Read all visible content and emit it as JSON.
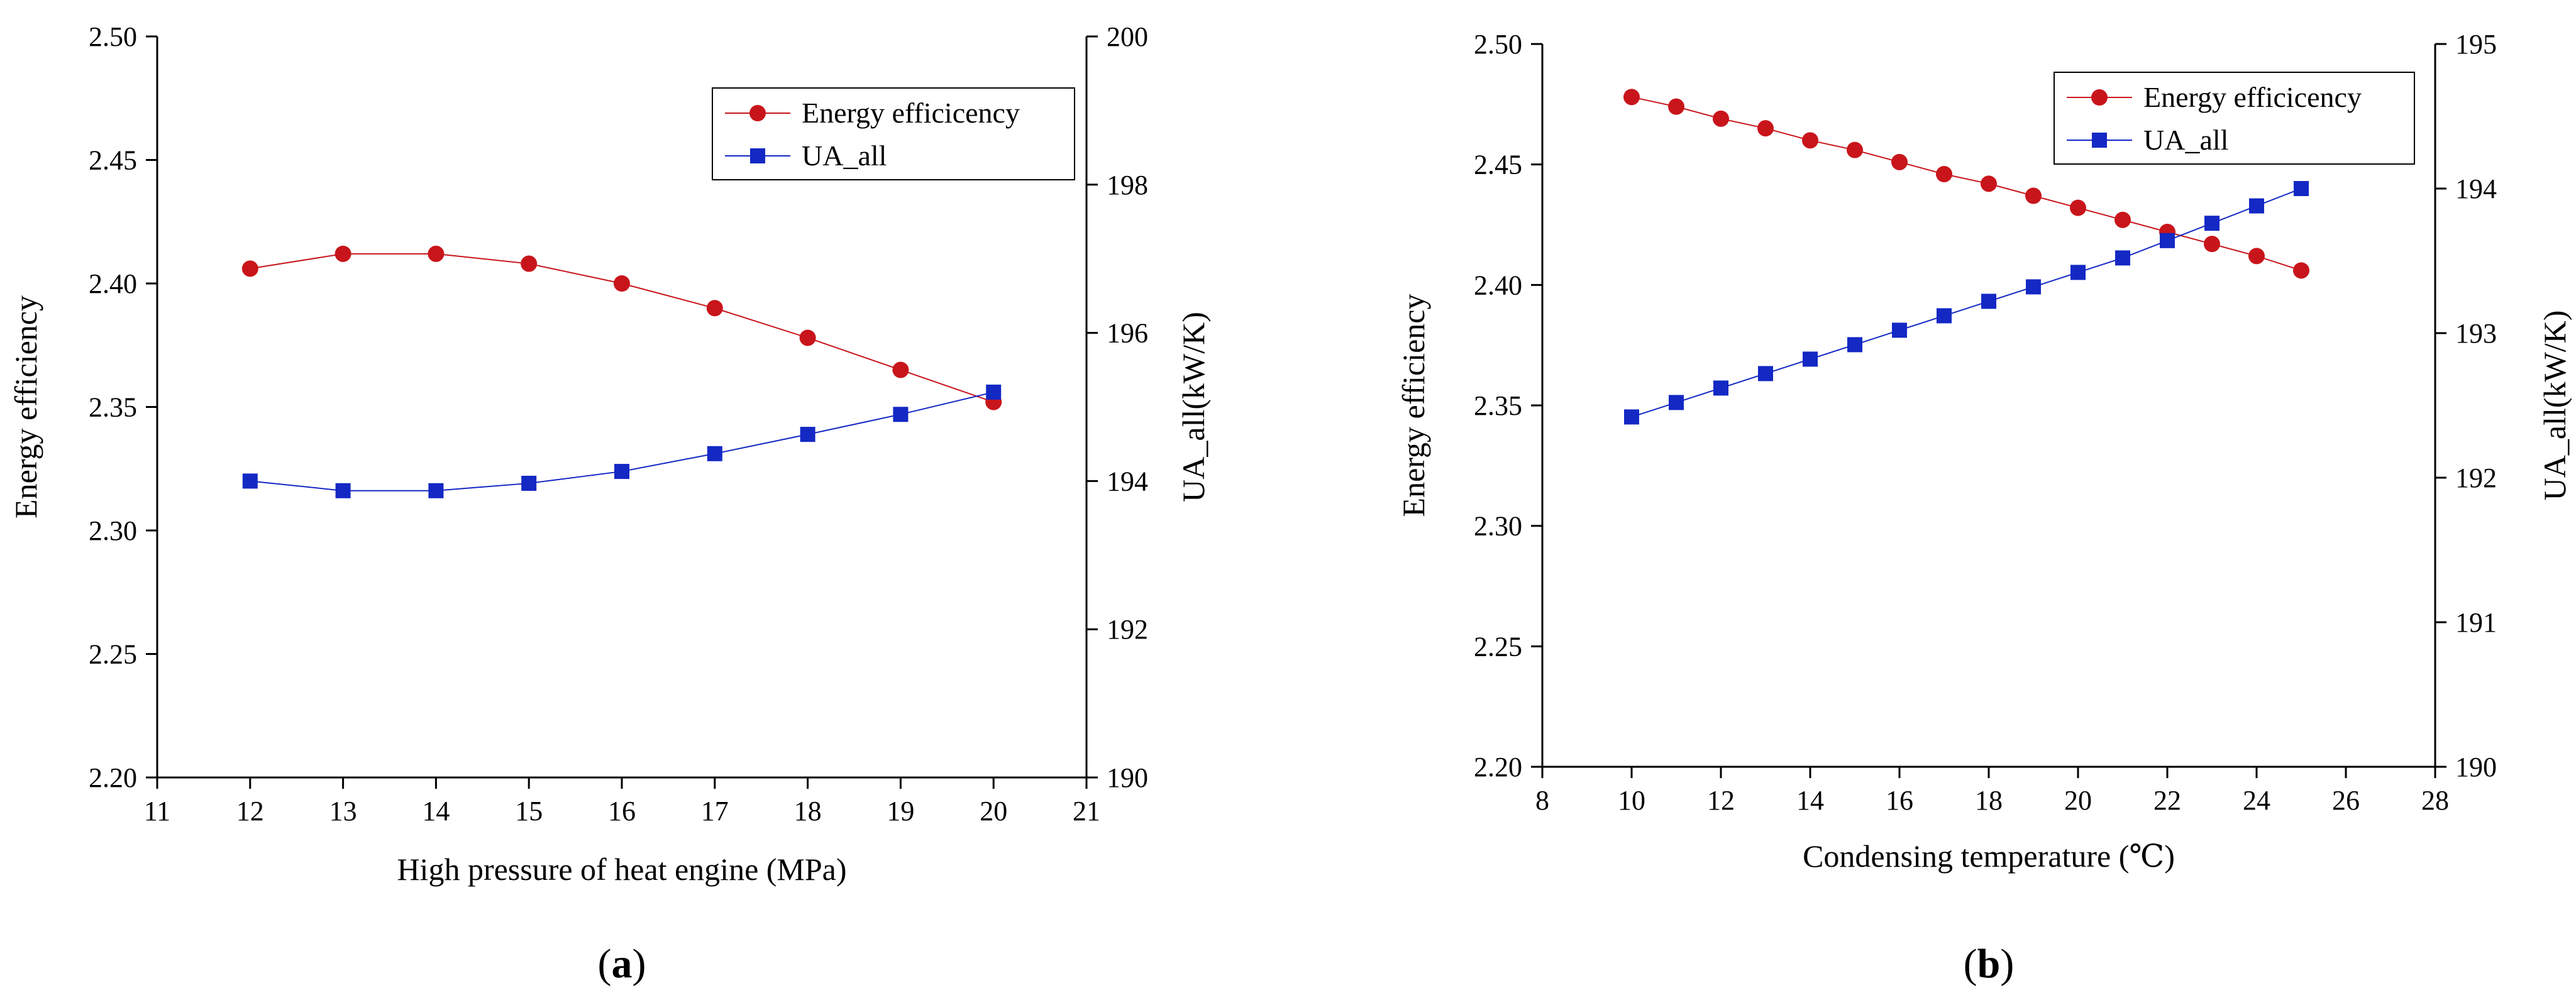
{
  "chart_data": [
    {
      "type": "line",
      "panel_label": "a",
      "xlabel": "High pressure of heat engine (MPa)",
      "ylabel": "Energy efficiency",
      "y2label": "UA_all(kW/K)",
      "xlim": [
        11,
        21
      ],
      "ylim": [
        2.2,
        2.5
      ],
      "y2lim": [
        190,
        200
      ],
      "xticks": [
        11,
        12,
        13,
        14,
        15,
        16,
        17,
        18,
        19,
        20,
        21
      ],
      "yticks": [
        2.2,
        2.25,
        2.3,
        2.35,
        2.4,
        2.45,
        2.5
      ],
      "y2ticks": [
        190,
        192,
        194,
        196,
        198,
        200
      ],
      "xtick_decimals": 0,
      "ytick_decimals": 2,
      "legend_position": "top-right",
      "x": [
        12,
        13,
        14,
        15,
        16,
        17,
        18,
        19,
        20
      ],
      "series": [
        {
          "name": "Energy efficicency",
          "axis": "left",
          "marker": "circle",
          "color": "#c8151b",
          "values": [
            2.406,
            2.412,
            2.412,
            2.408,
            2.4,
            2.39,
            2.378,
            2.365,
            2.352
          ]
        },
        {
          "name": "UA_all",
          "axis": "right",
          "marker": "square",
          "color": "#1428c4",
          "values": [
            194.0,
            193.87,
            193.87,
            193.97,
            194.13,
            194.37,
            194.63,
            194.9,
            195.2
          ]
        }
      ]
    },
    {
      "type": "line",
      "panel_label": "b",
      "xlabel": "Condensing temperature (℃)",
      "ylabel": "Energy efficiency",
      "y2label": "UA_all(kW/K)",
      "xlim": [
        8,
        28
      ],
      "ylim": [
        2.2,
        2.5
      ],
      "y2lim": [
        190,
        195
      ],
      "xticks": [
        8,
        10,
        12,
        14,
        16,
        18,
        20,
        22,
        24,
        26,
        28
      ],
      "yticks": [
        2.2,
        2.25,
        2.3,
        2.35,
        2.4,
        2.45,
        2.5
      ],
      "y2ticks": [
        190,
        191,
        192,
        193,
        194,
        195
      ],
      "xtick_decimals": 0,
      "ytick_decimals": 2,
      "legend_position": "top-right",
      "x": [
        10,
        11,
        12,
        13,
        14,
        15,
        16,
        17,
        18,
        19,
        20,
        21,
        22,
        23,
        24,
        25
      ],
      "series": [
        {
          "name": "Energy efficicency",
          "axis": "left",
          "marker": "circle",
          "color": "#c8151b",
          "values": [
            2.478,
            2.474,
            2.469,
            2.465,
            2.46,
            2.456,
            2.451,
            2.446,
            2.442,
            2.437,
            2.432,
            2.427,
            2.422,
            2.417,
            2.412,
            2.406
          ]
        },
        {
          "name": "UA_all",
          "axis": "right",
          "marker": "square",
          "color": "#1428c4",
          "values": [
            192.42,
            192.52,
            192.62,
            192.72,
            192.82,
            192.92,
            193.02,
            193.12,
            193.22,
            193.32,
            193.42,
            193.52,
            193.64,
            193.76,
            193.88,
            194.0
          ]
        }
      ]
    }
  ]
}
